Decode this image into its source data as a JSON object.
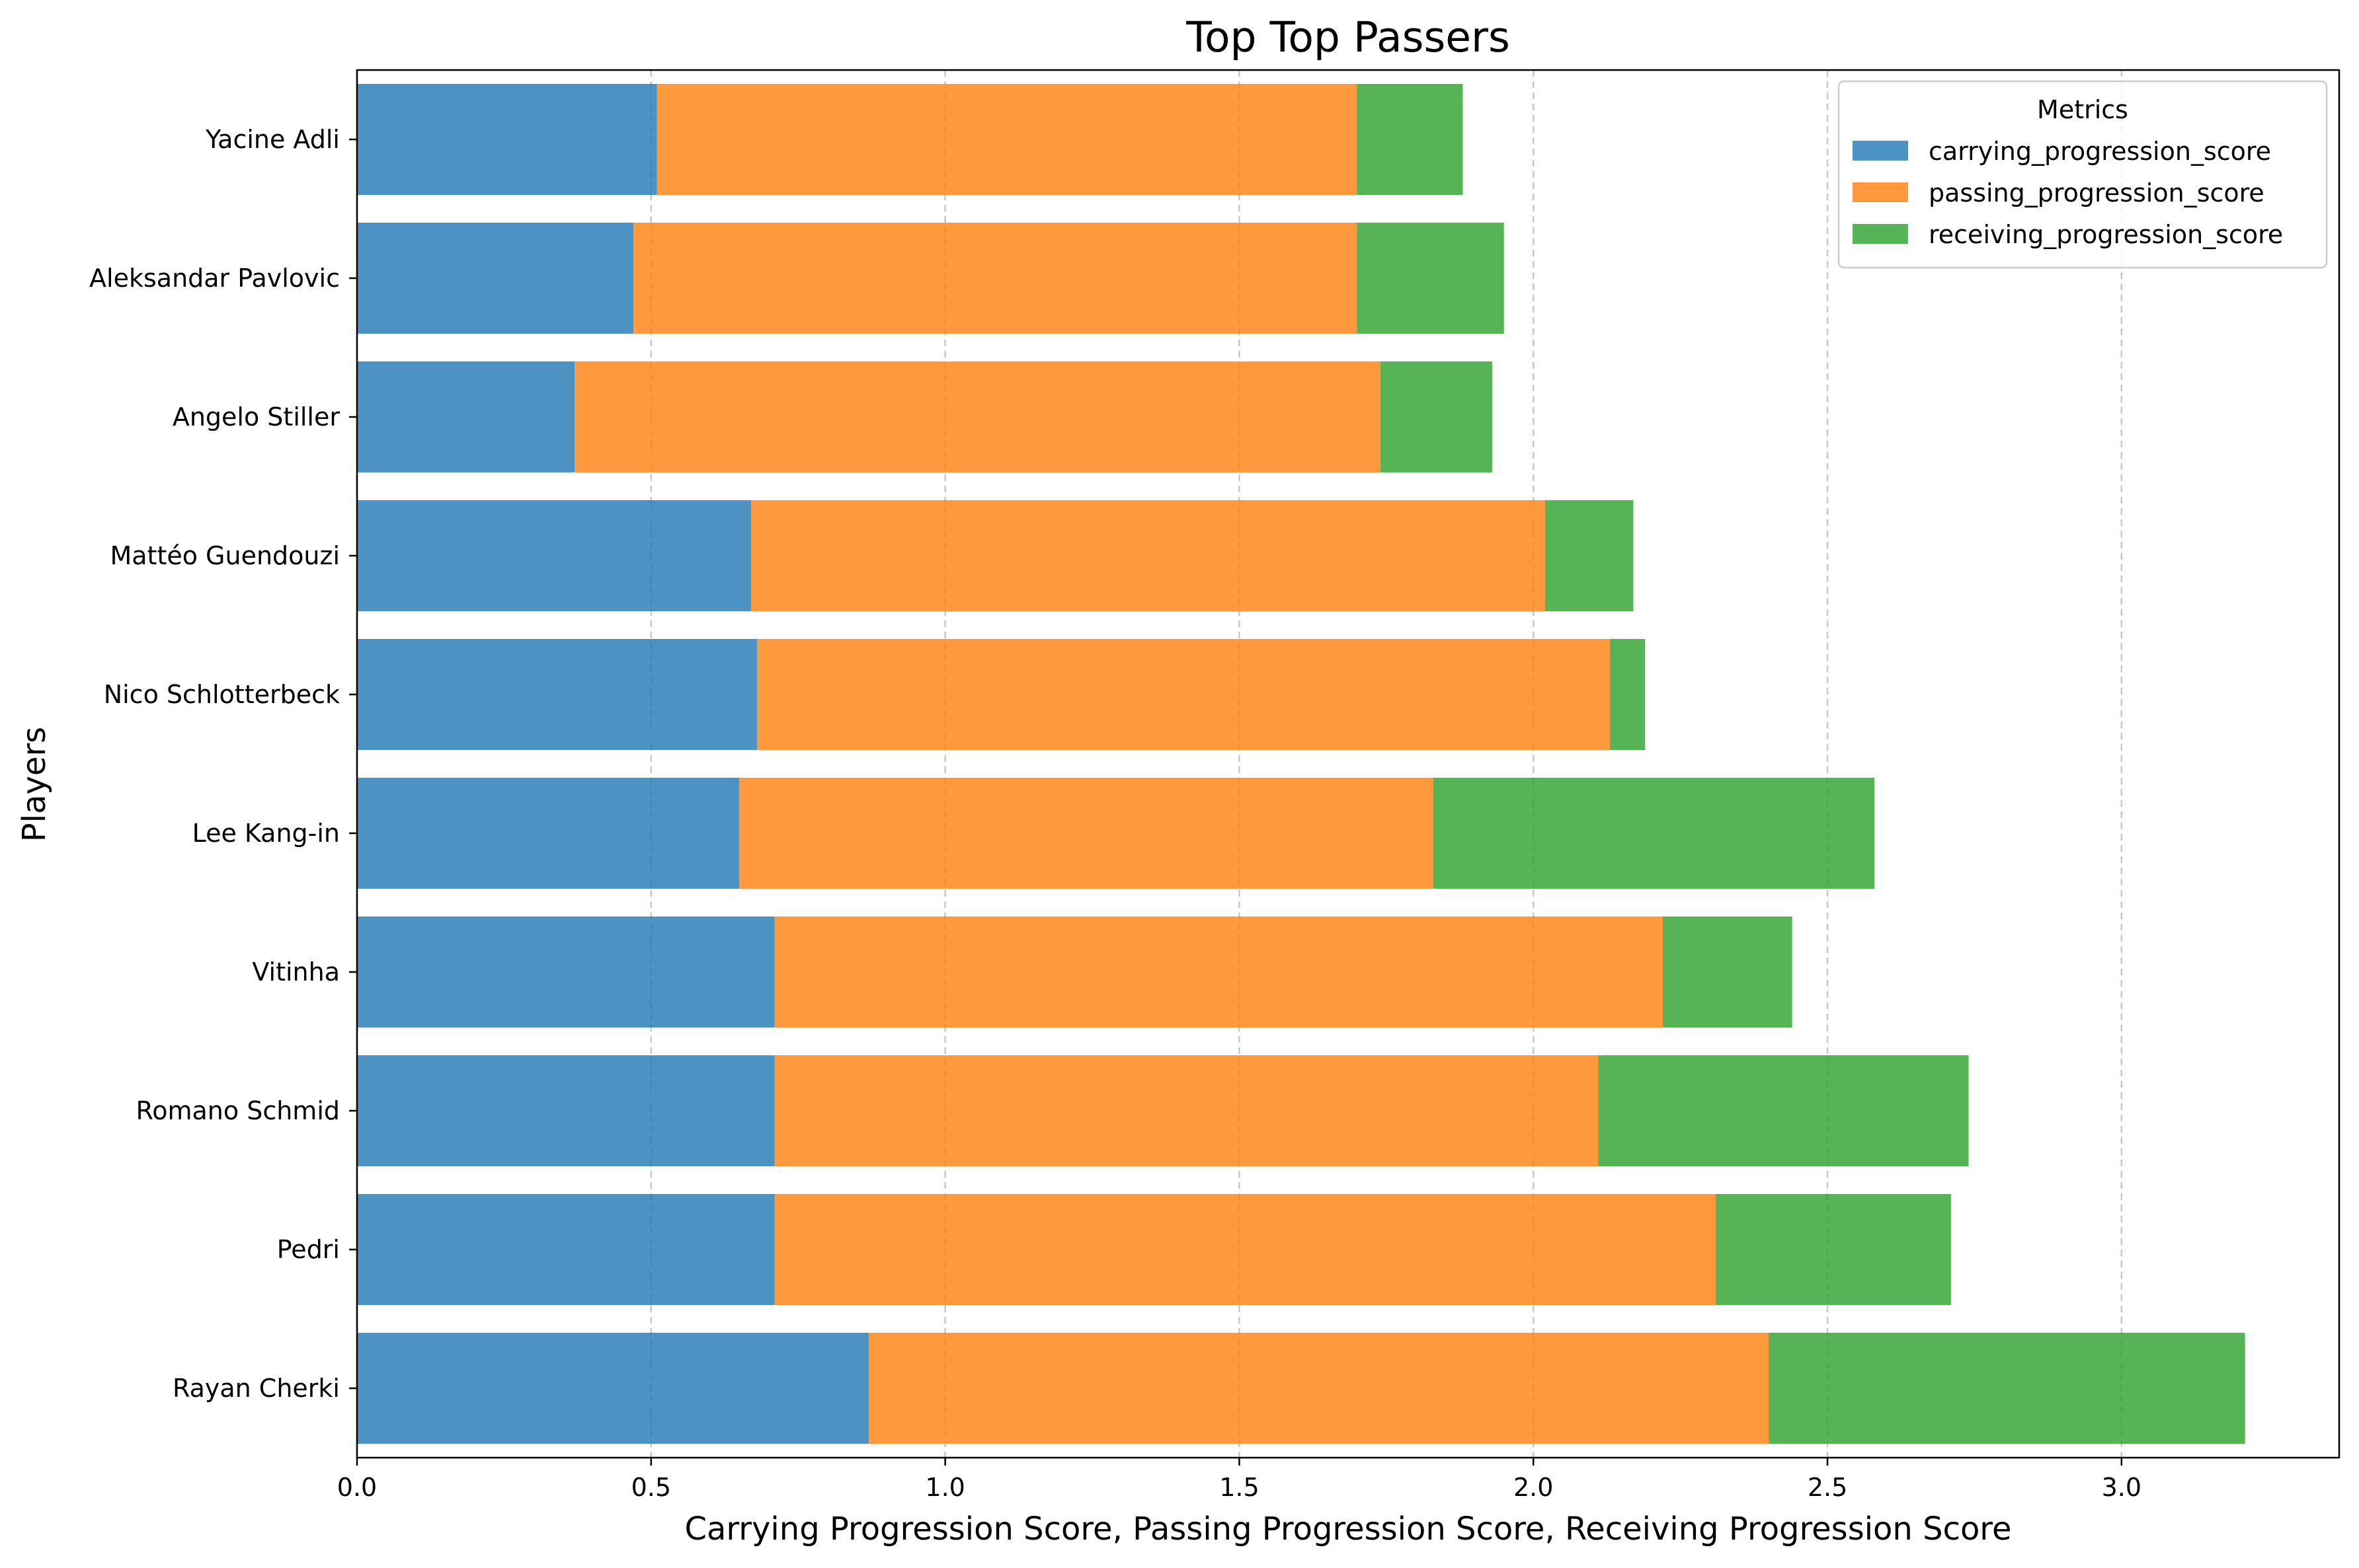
{
  "chart_data": {
    "type": "bar",
    "orientation": "horizontal",
    "stacked": true,
    "title": "Top Top Passers",
    "xlabel": "Carrying Progression Score, Passing Progression Score, Receiving Progression Score",
    "ylabel": "Players",
    "xlim": [
      0,
      3.37
    ],
    "xticks": [
      "0.0",
      "0.5",
      "1.0",
      "1.5",
      "2.0",
      "2.5",
      "3.0"
    ],
    "grid": "x-axis dashed",
    "legend": {
      "title": "Metrics",
      "placement": "top-right"
    },
    "categories": [
      "Yacine Adli",
      "Aleksandar Pavlovic",
      "Angelo Stiller",
      "Mattéo Guendouzi",
      "Nico Schlotterbeck",
      "Lee Kang-in",
      "Vitinha",
      "Romano Schmid",
      "Pedri",
      "Rayan Cherki"
    ],
    "series": [
      {
        "name": "carrying_progression_score",
        "color": "#1f77b4",
        "values": [
          0.51,
          0.47,
          0.37,
          0.67,
          0.68,
          0.65,
          0.71,
          0.71,
          0.71,
          0.87
        ]
      },
      {
        "name": "passing_progression_score",
        "color": "#ff7f0e",
        "values": [
          1.19,
          1.23,
          1.37,
          1.35,
          1.45,
          1.18,
          1.51,
          1.4,
          1.6,
          1.53
        ]
      },
      {
        "name": "receiving_progression_score",
        "color": "#2ca02c",
        "values": [
          0.18,
          0.25,
          0.19,
          0.15,
          0.06,
          0.75,
          0.22,
          0.63,
          0.4,
          0.81
        ]
      }
    ]
  }
}
